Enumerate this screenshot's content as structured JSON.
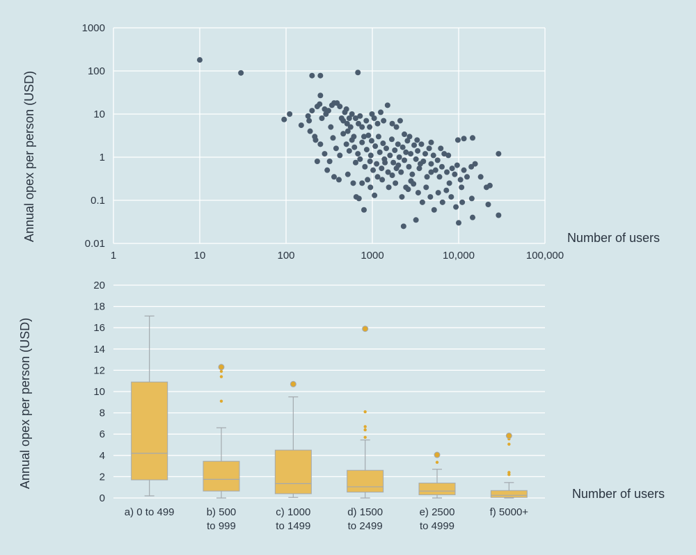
{
  "theme": {
    "background": "#d6e6ea",
    "grid": "#ffffff",
    "dot": "#4b5c6e",
    "box_fill": "#e8bd5a",
    "box_stroke": "#a3a9ae",
    "outlier": "#e0a92e"
  },
  "chart_data": [
    {
      "type": "scatter",
      "xscale": "log",
      "yscale": "log",
      "xlim": [
        1,
        100000
      ],
      "ylim": [
        0.01,
        1000
      ],
      "x_ticks": [
        "1",
        "10",
        "100",
        "1000",
        "10,000",
        "100,000"
      ],
      "y_ticks": [
        "0.01",
        "0.1",
        "1",
        "10",
        "100",
        "1000"
      ],
      "xlabel": "Number of users",
      "ylabel": "Annual opex per person (USD)",
      "grid": true,
      "points": [
        [
          10,
          180
        ],
        [
          30,
          90
        ],
        [
          200,
          78
        ],
        [
          250,
          78
        ],
        [
          680,
          92
        ],
        [
          95,
          7.5
        ],
        [
          110,
          10
        ],
        [
          150,
          5.5
        ],
        [
          180,
          9
        ],
        [
          185,
          7
        ],
        [
          190,
          4
        ],
        [
          200,
          12
        ],
        [
          215,
          3
        ],
        [
          230,
          15
        ],
        [
          245,
          17
        ],
        [
          250,
          27
        ],
        [
          260,
          8
        ],
        [
          280,
          13
        ],
        [
          290,
          10
        ],
        [
          310,
          12
        ],
        [
          330,
          5
        ],
        [
          340,
          16
        ],
        [
          360,
          18
        ],
        [
          390,
          18
        ],
        [
          420,
          15
        ],
        [
          440,
          8
        ],
        [
          460,
          7
        ],
        [
          480,
          11
        ],
        [
          500,
          13
        ],
        [
          510,
          6
        ],
        [
          520,
          4
        ],
        [
          540,
          8
        ],
        [
          560,
          5
        ],
        [
          580,
          10
        ],
        [
          610,
          3
        ],
        [
          640,
          8
        ],
        [
          690,
          6
        ],
        [
          720,
          9
        ],
        [
          760,
          5
        ],
        [
          800,
          3
        ],
        [
          850,
          7
        ],
        [
          930,
          5
        ],
        [
          990,
          10
        ],
        [
          1050,
          8
        ],
        [
          1150,
          6
        ],
        [
          1250,
          11
        ],
        [
          1350,
          7
        ],
        [
          1500,
          16
        ],
        [
          1700,
          6
        ],
        [
          1900,
          5
        ],
        [
          2100,
          7
        ],
        [
          2350,
          3.4
        ],
        [
          2700,
          3
        ],
        [
          3300,
          2.5
        ],
        [
          4800,
          2.2
        ],
        [
          6200,
          1.6
        ],
        [
          7600,
          1.1
        ],
        [
          9800,
          2.5
        ],
        [
          11500,
          2.7
        ],
        [
          14500,
          2.8
        ],
        [
          29000,
          1.2
        ],
        [
          220,
          2.5
        ],
        [
          250,
          2
        ],
        [
          280,
          1.2
        ],
        [
          320,
          0.8
        ],
        [
          350,
          2.8
        ],
        [
          380,
          1.6
        ],
        [
          420,
          1.1
        ],
        [
          460,
          3.5
        ],
        [
          500,
          2
        ],
        [
          540,
          1.4
        ],
        [
          580,
          2.5
        ],
        [
          620,
          1.7
        ],
        [
          680,
          1.2
        ],
        [
          720,
          0.9
        ],
        [
          760,
          2.2
        ],
        [
          820,
          0.6
        ],
        [
          860,
          1.5
        ],
        [
          900,
          3.2
        ],
        [
          940,
          0.8
        ],
        [
          980,
          2.4
        ],
        [
          1020,
          0.5
        ],
        [
          1080,
          1.8
        ],
        [
          1120,
          0.7
        ],
        [
          1180,
          3
        ],
        [
          1220,
          1.3
        ],
        [
          1280,
          0.55
        ],
        [
          1330,
          2.1
        ],
        [
          1380,
          0.9
        ],
        [
          1450,
          1.6
        ],
        [
          1520,
          0.45
        ],
        [
          1600,
          1.1
        ],
        [
          1680,
          2.6
        ],
        [
          1750,
          0.75
        ],
        [
          1820,
          1.45
        ],
        [
          1900,
          0.55
        ],
        [
          1980,
          2
        ],
        [
          2050,
          1
        ],
        [
          2150,
          0.45
        ],
        [
          2250,
          1.7
        ],
        [
          2350,
          0.85
        ],
        [
          2450,
          1.3
        ],
        [
          2550,
          2.4
        ],
        [
          2650,
          0.6
        ],
        [
          2780,
          1.2
        ],
        [
          2900,
          0.4
        ],
        [
          3050,
          1.9
        ],
        [
          3200,
          0.9
        ],
        [
          3350,
          1.4
        ],
        [
          3500,
          0.55
        ],
        [
          3700,
          2
        ],
        [
          3900,
          0.8
        ],
        [
          4100,
          1.2
        ],
        [
          4300,
          0.35
        ],
        [
          4550,
          1.6
        ],
        [
          4800,
          0.7
        ],
        [
          5100,
          1.1
        ],
        [
          5400,
          0.5
        ],
        [
          5700,
          0.85
        ],
        [
          6000,
          0.35
        ],
        [
          6400,
          0.6
        ],
        [
          6800,
          1.2
        ],
        [
          7300,
          0.45
        ],
        [
          7800,
          0.25
        ],
        [
          8400,
          0.55
        ],
        [
          9000,
          0.4
        ],
        [
          9600,
          0.65
        ],
        [
          10500,
          0.3
        ],
        [
          11500,
          0.5
        ],
        [
          12500,
          0.35
        ],
        [
          14000,
          0.6
        ],
        [
          15500,
          0.7
        ],
        [
          18000,
          0.35
        ],
        [
          21000,
          0.2
        ],
        [
          230,
          0.8
        ],
        [
          300,
          0.5
        ],
        [
          360,
          0.35
        ],
        [
          410,
          0.3
        ],
        [
          520,
          0.4
        ],
        [
          600,
          0.25
        ],
        [
          650,
          0.12
        ],
        [
          700,
          0.11
        ],
        [
          760,
          0.25
        ],
        [
          880,
          0.3
        ],
        [
          950,
          0.2
        ],
        [
          1060,
          0.13
        ],
        [
          1300,
          0.3
        ],
        [
          1550,
          0.2
        ],
        [
          1850,
          0.25
        ],
        [
          2200,
          0.12
        ],
        [
          2600,
          0.18
        ],
        [
          3000,
          0.24
        ],
        [
          3400,
          0.15
        ],
        [
          3800,
          0.09
        ],
        [
          4200,
          0.2
        ],
        [
          4700,
          0.12
        ],
        [
          5200,
          0.06
        ],
        [
          5800,
          0.15
        ],
        [
          6500,
          0.09
        ],
        [
          7200,
          0.17
        ],
        [
          8200,
          0.12
        ],
        [
          9300,
          0.07
        ],
        [
          10800,
          0.2
        ],
        [
          14200,
          0.11
        ],
        [
          14500,
          0.04
        ],
        [
          22000,
          0.08
        ],
        [
          23000,
          0.22
        ],
        [
          29000,
          0.045
        ],
        [
          800,
          0.06
        ],
        [
          2300,
          0.025
        ],
        [
          3200,
          0.035
        ],
        [
          10000,
          0.03
        ],
        [
          11000,
          0.09
        ],
        [
          4800,
          0.45
        ],
        [
          3600,
          0.7
        ],
        [
          2800,
          0.28
        ],
        [
          2000,
          0.65
        ],
        [
          1700,
          0.38
        ],
        [
          1400,
          0.75
        ],
        [
          1150,
          0.35
        ],
        [
          960,
          1.1
        ],
        [
          640,
          0.75
        ],
        [
          2450,
          0.2
        ]
      ]
    },
    {
      "type": "box",
      "ylim": [
        0,
        20
      ],
      "y_ticks": [
        "0",
        "2",
        "4",
        "6",
        "8",
        "10",
        "12",
        "14",
        "16",
        "18",
        "20"
      ],
      "xlabel": "Number of users",
      "ylabel": "Annual opex per person (USD)",
      "grid": true,
      "categories": [
        [
          "a) 0 to 499"
        ],
        [
          "b) 500",
          "to 999"
        ],
        [
          "c) 1000",
          "to 1499"
        ],
        [
          "d) 1500",
          "to 2499"
        ],
        [
          "e) 2500",
          "to 4999"
        ],
        [
          "f) 5000+"
        ]
      ],
      "boxes": [
        {
          "whisker_low": 0.2,
          "q1": 1.7,
          "median": 4.2,
          "q3": 10.9,
          "whisker_high": 17.1,
          "outliers": []
        },
        {
          "whisker_low": 0,
          "q1": 0.65,
          "median": 1.75,
          "q3": 3.45,
          "whisker_high": 6.6,
          "outliers": [
            9.1,
            11.4,
            11.9,
            12.3
          ]
        },
        {
          "whisker_low": 0.05,
          "q1": 0.4,
          "median": 1.35,
          "q3": 4.5,
          "whisker_high": 9.5,
          "outliers": [
            10.7
          ]
        },
        {
          "whisker_low": 0,
          "q1": 0.55,
          "median": 1.05,
          "q3": 2.6,
          "whisker_high": 5.45,
          "outliers": [
            5.7,
            6.4,
            6.7,
            8.1,
            15.9
          ]
        },
        {
          "whisker_low": 0,
          "q1": 0.3,
          "median": 0.65,
          "q3": 1.4,
          "whisker_high": 2.7,
          "outliers": [
            3.35,
            4.05
          ]
        },
        {
          "whisker_low": 0,
          "q1": 0.05,
          "median": 0.25,
          "q3": 0.7,
          "whisker_high": 1.45,
          "outliers": [
            2.2,
            2.4,
            5.05,
            5.55,
            5.85
          ]
        }
      ]
    }
  ]
}
